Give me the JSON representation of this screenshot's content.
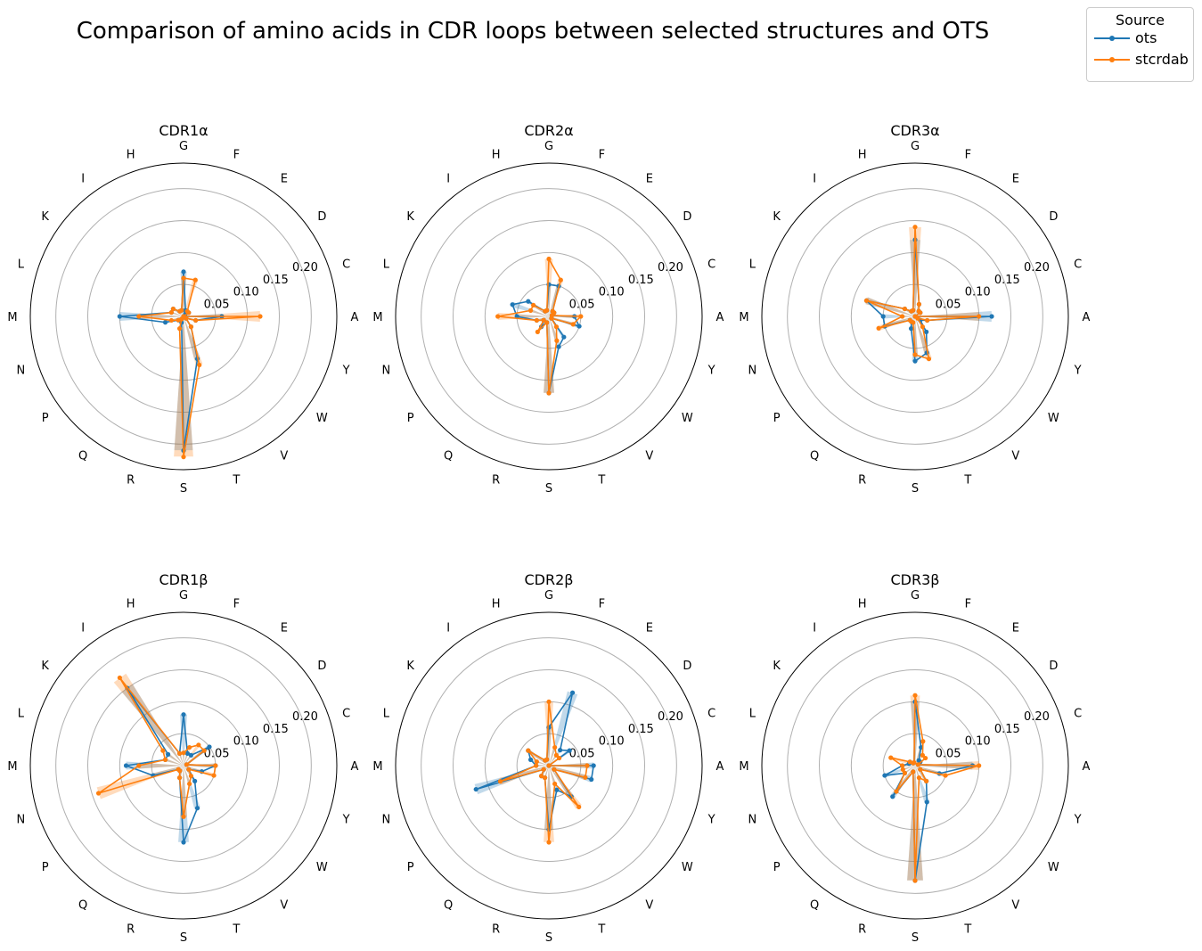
{
  "title": "Comparison of amino acids in CDR loops between selected structures and OTS",
  "legend": {
    "title": "Source",
    "entries": [
      {
        "label": "ots",
        "color": "#1f77b4"
      },
      {
        "label": "stcrdab",
        "color": "#ff7f0e"
      }
    ]
  },
  "chart_data": {
    "type": "radar",
    "categories": [
      "A",
      "C",
      "D",
      "E",
      "F",
      "G",
      "H",
      "I",
      "K",
      "L",
      "M",
      "N",
      "P",
      "Q",
      "R",
      "S",
      "T",
      "V",
      "W",
      "Y"
    ],
    "rlim": [
      0,
      0.24
    ],
    "rticks": [
      0.05,
      0.1,
      0.15,
      0.2
    ],
    "rtick_labels": [
      "0.05",
      "0.10",
      "0.15",
      "0.20"
    ],
    "panels": [
      {
        "title": "CDR1α",
        "series": [
          {
            "name": "ots",
            "values": [
              0.06,
              0.0,
              0.01,
              0.005,
              0.01,
              0.07,
              0.01,
              0.01,
              0.02,
              0.02,
              0.1,
              0.03,
              0.01,
              0.005,
              0.01,
              0.21,
              0.07,
              0.02,
              0.005,
              0.02
            ]
          },
          {
            "name": "stcrdab",
            "values": [
              0.12,
              0.0,
              0.01,
              0.01,
              0.06,
              0.06,
              0.01,
              0.01,
              0.02,
              0.02,
              0.07,
              0.02,
              0.01,
              0.005,
              0.02,
              0.22,
              0.08,
              0.02,
              0.005,
              0.02
            ]
          }
        ]
      },
      {
        "title": "CDR2α",
        "series": [
          {
            "name": "ots",
            "values": [
              0.04,
              0.005,
              0.01,
              0.01,
              0.05,
              0.05,
              0.01,
              0.01,
              0.04,
              0.06,
              0.05,
              0.02,
              0.01,
              0.02,
              0.01,
              0.12,
              0.05,
              0.04,
              0.005,
              0.05
            ]
          },
          {
            "name": "stcrdab",
            "values": [
              0.05,
              0.005,
              0.01,
              0.01,
              0.06,
              0.09,
              0.01,
              0.01,
              0.03,
              0.03,
              0.08,
              0.02,
              0.01,
              0.03,
              0.01,
              0.12,
              0.04,
              0.02,
              0.005,
              0.04
            ]
          }
        ]
      },
      {
        "title": "CDR3α",
        "series": [
          {
            "name": "ots",
            "values": [
              0.12,
              0.0,
              0.01,
              0.01,
              0.02,
              0.12,
              0.01,
              0.01,
              0.02,
              0.08,
              0.05,
              0.05,
              0.01,
              0.01,
              0.02,
              0.07,
              0.06,
              0.03,
              0.01,
              0.02
            ]
          },
          {
            "name": "stcrdab",
            "values": [
              0.1,
              0.0,
              0.01,
              0.01,
              0.02,
              0.14,
              0.01,
              0.01,
              0.02,
              0.08,
              0.02,
              0.06,
              0.01,
              0.01,
              0.01,
              0.06,
              0.07,
              0.02,
              0.005,
              0.02
            ]
          }
        ]
      },
      {
        "title": "CDR1β",
        "series": [
          {
            "name": "ots",
            "values": [
              0.05,
              0.005,
              0.05,
              0.02,
              0.02,
              0.08,
              0.02,
              0.15,
              0.03,
              0.03,
              0.09,
              0.05,
              0.01,
              0.01,
              0.02,
              0.12,
              0.07,
              0.03,
              0.01,
              0.03
            ]
          },
          {
            "name": "stcrdab",
            "values": [
              0.05,
              0.005,
              0.04,
              0.04,
              0.03,
              0.02,
              0.02,
              0.17,
              0.04,
              0.03,
              0.07,
              0.14,
              0.01,
              0.01,
              0.02,
              0.08,
              0.03,
              0.02,
              0.01,
              0.05
            ]
          }
        ]
      },
      {
        "title": "CDR2β",
        "series": [
          {
            "name": "ots",
            "values": [
              0.07,
              0.0,
              0.04,
              0.03,
              0.12,
              0.06,
              0.01,
              0.01,
              0.04,
              0.03,
              0.02,
              0.12,
              0.01,
              0.02,
              0.02,
              0.1,
              0.04,
              0.06,
              0.01,
              0.07
            ]
          },
          {
            "name": "stcrdab",
            "values": [
              0.06,
              0.0,
              0.02,
              0.02,
              0.03,
              0.1,
              0.01,
              0.01,
              0.04,
              0.02,
              0.02,
              0.08,
              0.01,
              0.02,
              0.02,
              0.12,
              0.03,
              0.08,
              0.01,
              0.06
            ]
          }
        ]
      },
      {
        "title": "CDR3β",
        "series": [
          {
            "name": "ots",
            "values": [
              0.09,
              0.005,
              0.01,
              0.01,
              0.03,
              0.1,
              0.005,
              0.005,
              0.01,
              0.01,
              0.02,
              0.05,
              0.02,
              0.06,
              0.01,
              0.18,
              0.06,
              0.03,
              0.01,
              0.04
            ]
          },
          {
            "name": "stcrdab",
            "values": [
              0.1,
              0.005,
              0.02,
              0.02,
              0.04,
              0.11,
              0.005,
              0.005,
              0.01,
              0.04,
              0.02,
              0.02,
              0.02,
              0.05,
              0.01,
              0.18,
              0.02,
              0.03,
              0.01,
              0.05
            ]
          }
        ]
      }
    ]
  }
}
